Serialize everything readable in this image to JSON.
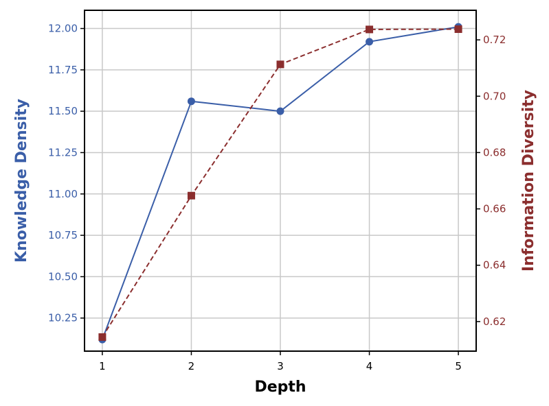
{
  "colors": {
    "left_series": "#3a5ea8",
    "right_series": "#8b2e2e",
    "grid": "#c8c8c8",
    "frame": "#000000",
    "text": "#000000"
  },
  "chart_data": {
    "type": "line",
    "xlabel": "Depth",
    "x": [
      1,
      2,
      3,
      4,
      5
    ],
    "x_ticks": [
      "1",
      "2",
      "3",
      "4",
      "5"
    ],
    "xlim": [
      0.8,
      5.2
    ],
    "grid": true,
    "y_left": {
      "label": "Knowledge Density",
      "lim": [
        10.05,
        12.11
      ],
      "ticks": [
        "10.25",
        "10.50",
        "10.75",
        "11.00",
        "11.25",
        "11.50",
        "11.75",
        "12.00"
      ],
      "tick_values": [
        10.25,
        10.5,
        10.75,
        11.0,
        11.25,
        11.5,
        11.75,
        12.0
      ]
    },
    "y_right": {
      "label": "Information Diversity",
      "lim": [
        0.6095,
        0.7305
      ],
      "ticks": [
        "0.62",
        "0.64",
        "0.66",
        "0.68",
        "0.70",
        "0.72"
      ],
      "tick_values": [
        0.62,
        0.64,
        0.66,
        0.68,
        0.7,
        0.72
      ]
    },
    "series": [
      {
        "axis": "left",
        "marker": "circle",
        "line_style": "solid",
        "values": [
          10.12,
          11.56,
          11.5,
          11.92,
          12.01
        ]
      },
      {
        "axis": "right",
        "marker": "square",
        "line_style": "dashed",
        "values": [
          0.6145,
          0.6647,
          0.7113,
          0.7237,
          0.7238
        ]
      }
    ]
  }
}
